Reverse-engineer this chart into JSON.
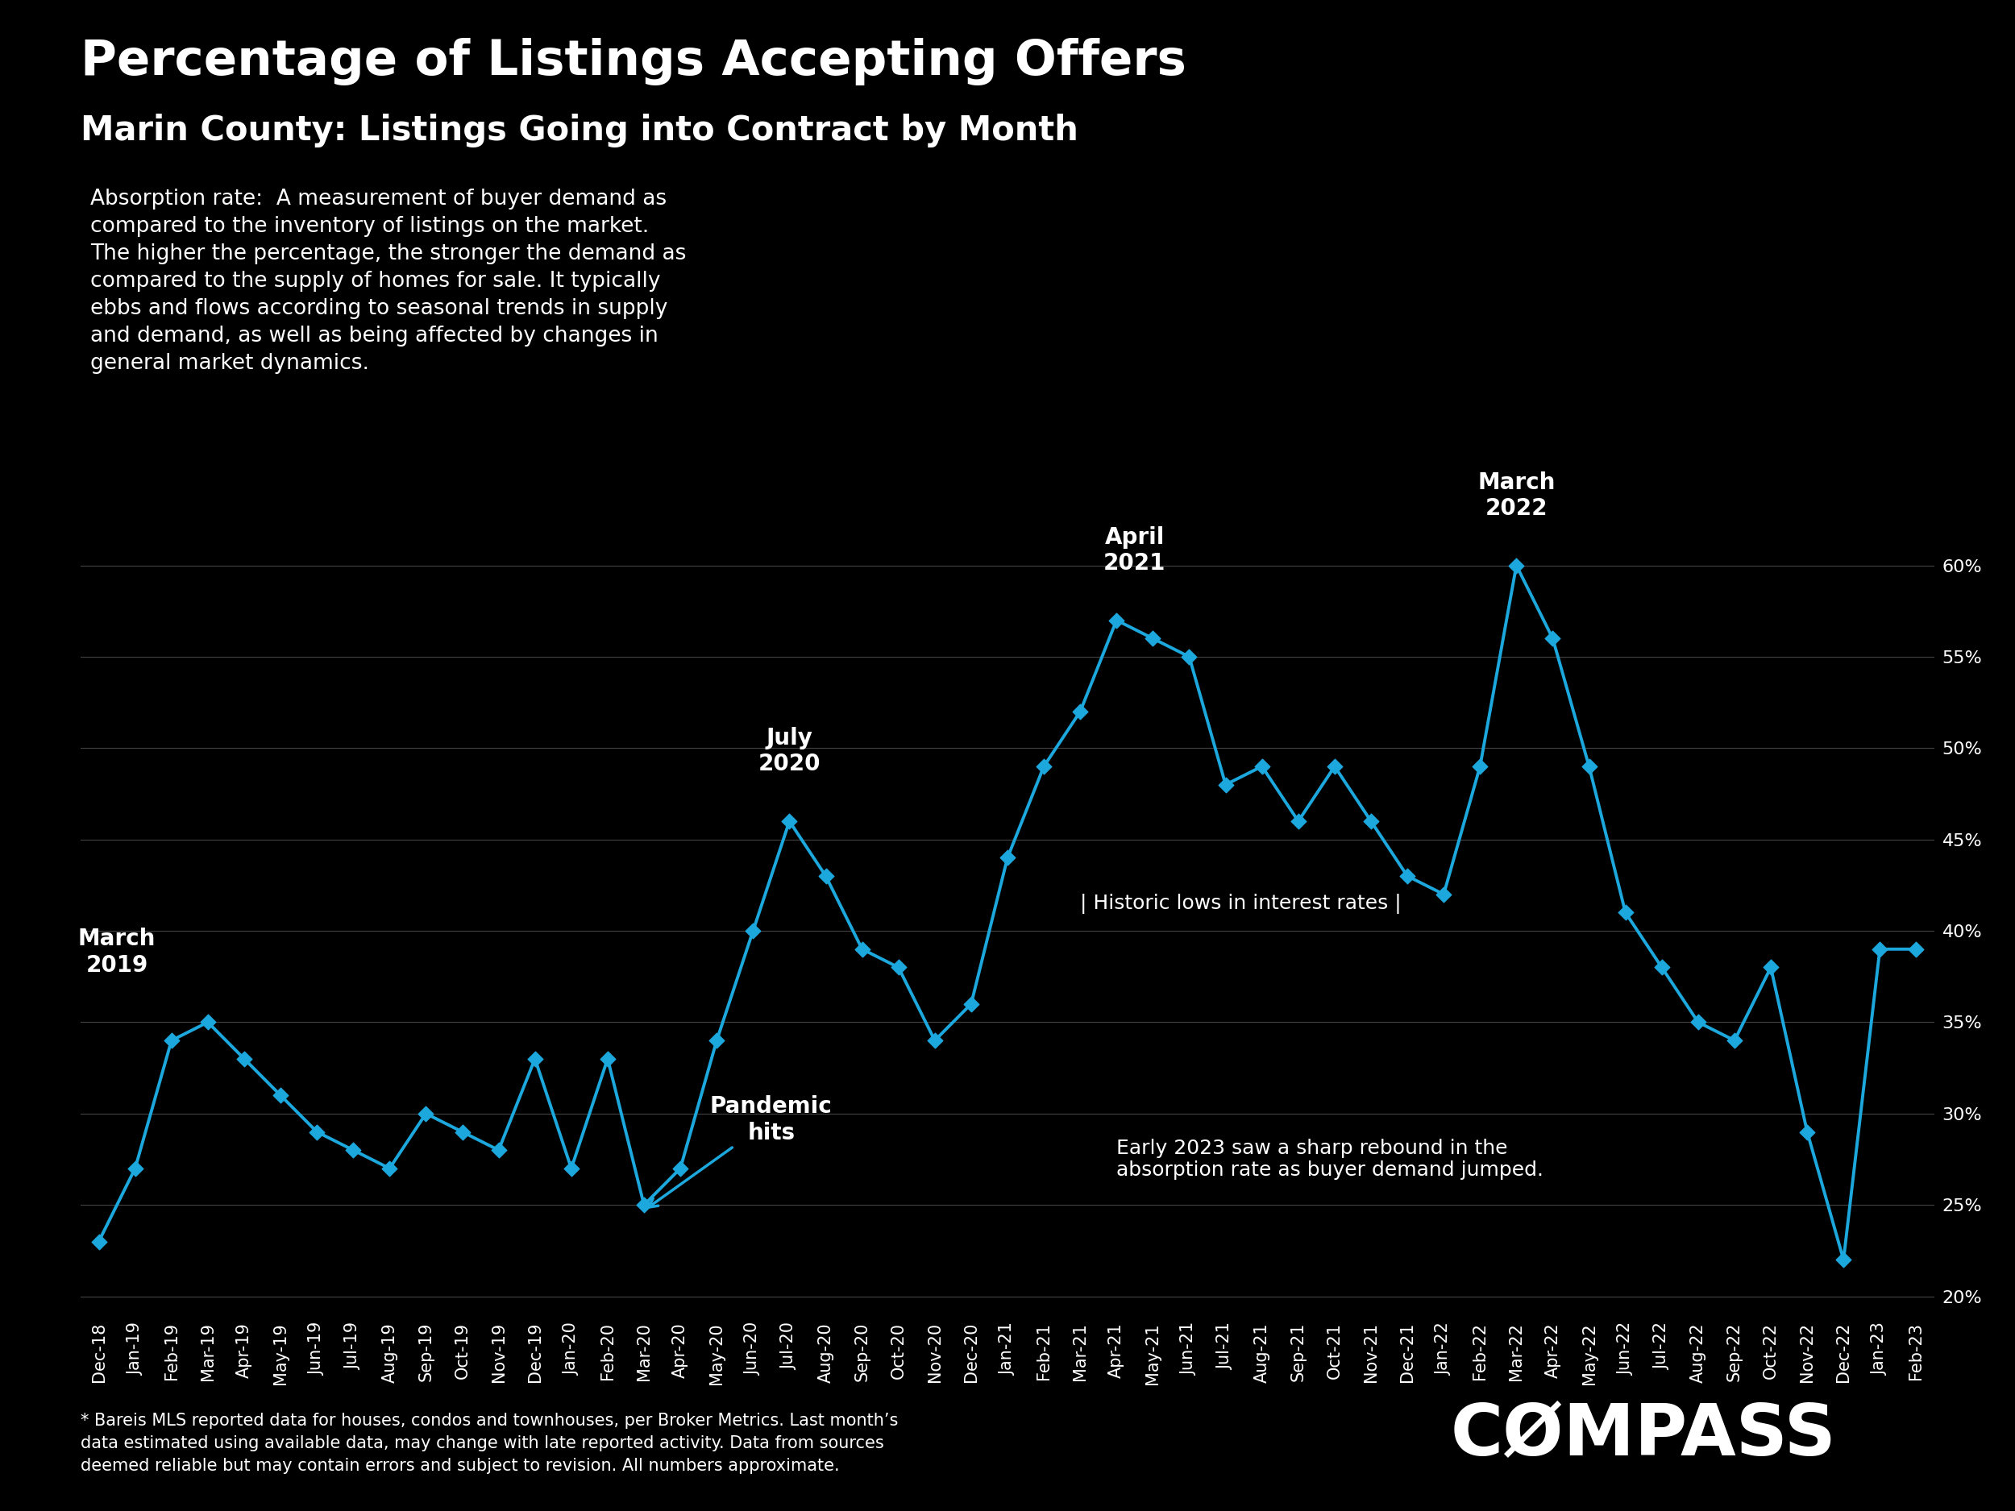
{
  "title": "Percentage of Listings Accepting Offers",
  "subtitle": "Marin County: Listings Going into Contract by Month",
  "background_color": "#000000",
  "line_color": "#1ca8dd",
  "text_color": "#ffffff",
  "description": "Absorption rate:  A measurement of buyer demand as\ncompared to the inventory of listings on the market.\nThe higher the percentage, the stronger the demand as\ncompared to the supply of homes for sale. It typically\nebbs and flows according to seasonal trends in supply\nand demand, as well as being affected by changes in\ngeneral market dynamics.",
  "footnote": "* Bareis MLS reported data for houses, condos and townhouses, per Broker Metrics. Last month’s\ndata estimated using available data, may change with late reported activity. Data from sources\ndeemed reliable but may contain errors and subject to revision. All numbers approximate.",
  "categories": [
    "Dec-18",
    "Jan-19",
    "Feb-19",
    "Mar-19",
    "Apr-19",
    "May-19",
    "Jun-19",
    "Jul-19",
    "Aug-19",
    "Sep-19",
    "Oct-19",
    "Nov-19",
    "Dec-19",
    "Jan-20",
    "Feb-20",
    "Mar-20",
    "Apr-20",
    "May-20",
    "Jun-20",
    "Jul-20",
    "Aug-20",
    "Sep-20",
    "Oct-20",
    "Nov-20",
    "Dec-20",
    "Jan-21",
    "Feb-21",
    "Mar-21",
    "Apr-21",
    "May-21",
    "Jun-21",
    "Jul-21",
    "Aug-21",
    "Sep-21",
    "Oct-21",
    "Nov-21",
    "Dec-21",
    "Jan-22",
    "Feb-22",
    "Mar-22",
    "Apr-22",
    "May-22",
    "Jun-22",
    "Jul-22",
    "Aug-22",
    "Sep-22",
    "Oct-22",
    "Nov-22",
    "Dec-22",
    "Jan-23",
    "Feb-23"
  ],
  "values": [
    23,
    27,
    34,
    35,
    33,
    31,
    29,
    28,
    27,
    30,
    29,
    28,
    33,
    27,
    33,
    25,
    27,
    34,
    40,
    46,
    43,
    39,
    38,
    34,
    36,
    44,
    49,
    52,
    57,
    56,
    55,
    48,
    49,
    46,
    49,
    46,
    43,
    42,
    49,
    60,
    56,
    49,
    41,
    38,
    35,
    34,
    38,
    29,
    22,
    39,
    39
  ],
  "ylim": [
    19,
    62
  ],
  "yticks": [
    20,
    25,
    30,
    35,
    40,
    45,
    50,
    55,
    60
  ],
  "grid_color": "#444444",
  "title_fontsize": 44,
  "subtitle_fontsize": 30,
  "tick_fontsize": 16,
  "annotation_fontsize": 20,
  "description_fontsize": 19,
  "footnote_fontsize": 15,
  "compass_fontsize": 64
}
